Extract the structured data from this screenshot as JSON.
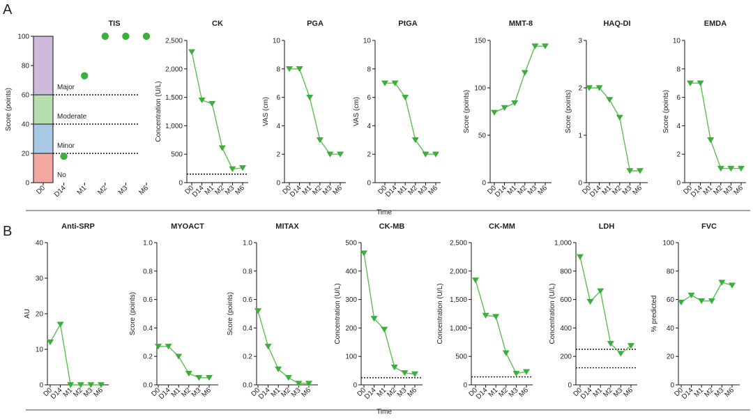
{
  "panels": [
    "A",
    "B"
  ],
  "time_label": "Time",
  "chart_data": [
    {
      "type": "scatter",
      "id": "tis",
      "row": "A",
      "title": "TIS",
      "ylabel": "Score (points)",
      "categories": [
        "D0",
        "D14",
        "M1",
        "M2",
        "M3",
        "M6"
      ],
      "values": [
        null,
        18,
        73,
        100,
        100,
        100
      ],
      "ylim": [
        0,
        100
      ],
      "yticks": [
        0,
        20,
        40,
        60,
        80,
        100
      ],
      "bands": [
        {
          "from": 0,
          "to": 20,
          "label": "No",
          "color": "#f4a6a0"
        },
        {
          "from": 20,
          "to": 40,
          "label": "Minor",
          "color": "#a8c8e4"
        },
        {
          "from": 40,
          "to": 60,
          "label": "Moderate",
          "color": "#b6dfb0"
        },
        {
          "from": 60,
          "to": 100,
          "label": "Major",
          "color": "#cdb9dc"
        }
      ],
      "reflines": [
        20,
        40,
        60
      ],
      "color": "#3cae3c"
    },
    {
      "type": "line",
      "id": "ck",
      "row": "A",
      "title": "CK",
      "ylabel": "Concentration (U/L)",
      "categories": [
        "D0",
        "D14",
        "M1",
        "M2",
        "M3",
        "M6"
      ],
      "values": [
        2300,
        1450,
        1390,
        610,
        240,
        260
      ],
      "ylim": [
        0,
        2500
      ],
      "yticks": [
        0,
        500,
        1000,
        1500,
        2000,
        2500
      ],
      "ytick_labels": [
        "0",
        "500",
        "1,000",
        "1,500",
        "2,000",
        "2,500"
      ],
      "reflines": [
        150
      ],
      "color": "#3cae3c"
    },
    {
      "type": "line",
      "id": "pga",
      "row": "A",
      "title": "PGA",
      "ylabel": "VAS (cm)",
      "categories": [
        "D0",
        "D14",
        "M1",
        "M2",
        "M3",
        "M6"
      ],
      "values": [
        8,
        8,
        6,
        3,
        2,
        2
      ],
      "ylim": [
        0,
        10
      ],
      "yticks": [
        0,
        2,
        4,
        6,
        8,
        10
      ],
      "color": "#3cae3c"
    },
    {
      "type": "line",
      "id": "ptga",
      "row": "A",
      "title": "PtGA",
      "ylabel": "VAS (cm)",
      "categories": [
        "D0",
        "D14",
        "M1",
        "M2",
        "M3",
        "M6"
      ],
      "values": [
        7,
        7,
        6,
        3,
        2,
        2
      ],
      "ylim": [
        0,
        10
      ],
      "yticks": [
        0,
        2,
        4,
        6,
        8,
        10
      ],
      "color": "#3cae3c"
    },
    {
      "type": "line",
      "id": "mmt8",
      "row": "A",
      "title": "MMT-8",
      "ylabel": "Score (points)",
      "categories": [
        "D0",
        "D14",
        "M1",
        "M2",
        "M3",
        "M6"
      ],
      "values": [
        74,
        79,
        84,
        116,
        144,
        144
      ],
      "ylim": [
        0,
        150
      ],
      "yticks": [
        0,
        50,
        100,
        150
      ],
      "color": "#3cae3c"
    },
    {
      "type": "line",
      "id": "haqdi",
      "row": "A",
      "title": "HAQ-DI",
      "ylabel": "Score (points)",
      "categories": [
        "D0",
        "D14",
        "M1",
        "M2",
        "M3",
        "M6"
      ],
      "values": [
        2,
        2,
        1.75,
        1.375,
        0.25,
        0.25
      ],
      "ylim": [
        0,
        3
      ],
      "yticks": [
        0,
        1,
        2,
        3
      ],
      "color": "#3cae3c"
    },
    {
      "type": "line",
      "id": "emda",
      "row": "A",
      "title": "EMDA",
      "ylabel": "Score (points)",
      "categories": [
        "D0",
        "D14",
        "M1",
        "M2",
        "M3",
        "M6"
      ],
      "values": [
        7,
        7,
        3,
        1,
        1,
        1
      ],
      "ylim": [
        0,
        10
      ],
      "yticks": [
        0,
        2,
        4,
        6,
        8,
        10
      ],
      "color": "#3cae3c"
    },
    {
      "type": "line",
      "id": "antisrp",
      "row": "B",
      "title": "Anti-SRP",
      "ylabel": "AU",
      "categories": [
        "D0",
        "D14",
        "M1",
        "M2",
        "M3",
        "M6"
      ],
      "values": [
        12,
        17,
        0,
        0,
        0,
        0
      ],
      "ylim": [
        0,
        40
      ],
      "yticks": [
        0,
        10,
        20,
        30,
        40
      ],
      "color": "#3cae3c"
    },
    {
      "type": "line",
      "id": "myoact",
      "row": "B",
      "title": "MYOACT",
      "ylabel": "Score (points)",
      "categories": [
        "D0",
        "D14",
        "M1",
        "M2",
        "M3",
        "M6"
      ],
      "values": [
        0.27,
        0.27,
        0.2,
        0.08,
        0.05,
        0.05
      ],
      "ylim": [
        0,
        1
      ],
      "yticks": [
        0,
        0.2,
        0.4,
        0.6,
        0.8,
        1
      ],
      "ytick_labels": [
        "0.0",
        "0.2",
        "0.4",
        "0.6",
        "0.8",
        "1.0"
      ],
      "color": "#3cae3c"
    },
    {
      "type": "line",
      "id": "mitax",
      "row": "B",
      "title": "MITAX",
      "ylabel": "Score (points)",
      "categories": [
        "D0",
        "D14",
        "M1",
        "M2",
        "M3",
        "M6"
      ],
      "values": [
        0.52,
        0.27,
        0.11,
        0.05,
        0.01,
        0.01
      ],
      "ylim": [
        0,
        1
      ],
      "yticks": [
        0,
        0.2,
        0.4,
        0.6,
        0.8,
        1
      ],
      "ytick_labels": [
        "0.0",
        "0.2",
        "0.4",
        "0.6",
        "0.8",
        "1.0"
      ],
      "color": "#3cae3c"
    },
    {
      "type": "line",
      "id": "ckmb",
      "row": "B",
      "title": "CK-MB",
      "ylabel": "Concentration (U/L)",
      "categories": [
        "D0",
        "D14",
        "M1",
        "M2",
        "M3",
        "M6"
      ],
      "values": [
        463,
        233,
        195,
        62,
        42,
        38
      ],
      "ylim": [
        0,
        500
      ],
      "yticks": [
        0,
        100,
        200,
        300,
        400,
        500
      ],
      "reflines": [
        25
      ],
      "color": "#3cae3c"
    },
    {
      "type": "line",
      "id": "ckmm",
      "row": "B",
      "title": "CK-MM",
      "ylabel": "Concentration (U/L)",
      "categories": [
        "D0",
        "D14",
        "M1",
        "M2",
        "M3",
        "M6"
      ],
      "values": [
        1840,
        1220,
        1200,
        560,
        200,
        230
      ],
      "ylim": [
        0,
        2500
      ],
      "yticks": [
        0,
        500,
        1000,
        1500,
        2000,
        2500
      ],
      "ytick_labels": [
        "0",
        "500",
        "1,000",
        "1,500",
        "2,000",
        "2,500"
      ],
      "reflines": [
        140
      ],
      "color": "#3cae3c"
    },
    {
      "type": "line",
      "id": "ldh",
      "row": "B",
      "title": "LDH",
      "ylabel": "Concentration (U/L)",
      "categories": [
        "D0",
        "D14",
        "M1",
        "M2",
        "M3",
        "M6"
      ],
      "values": [
        900,
        585,
        660,
        290,
        220,
        275
      ],
      "ylim": [
        0,
        1000
      ],
      "yticks": [
        0,
        200,
        400,
        600,
        800,
        1000
      ],
      "ytick_labels": [
        "0",
        "200",
        "400",
        "600",
        "800",
        "1,000"
      ],
      "reflines": [
        120,
        250
      ],
      "color": "#3cae3c"
    },
    {
      "type": "line",
      "id": "fvc",
      "row": "B",
      "title": "FVC",
      "ylabel": "% predicted",
      "categories": [
        "D0",
        "D14",
        "M1",
        "M2",
        "M3",
        "M6"
      ],
      "values": [
        58,
        63,
        59,
        59,
        72,
        70
      ],
      "ylim": [
        0,
        100
      ],
      "yticks": [
        0,
        20,
        40,
        60,
        80,
        100
      ],
      "color": "#3cae3c"
    }
  ]
}
